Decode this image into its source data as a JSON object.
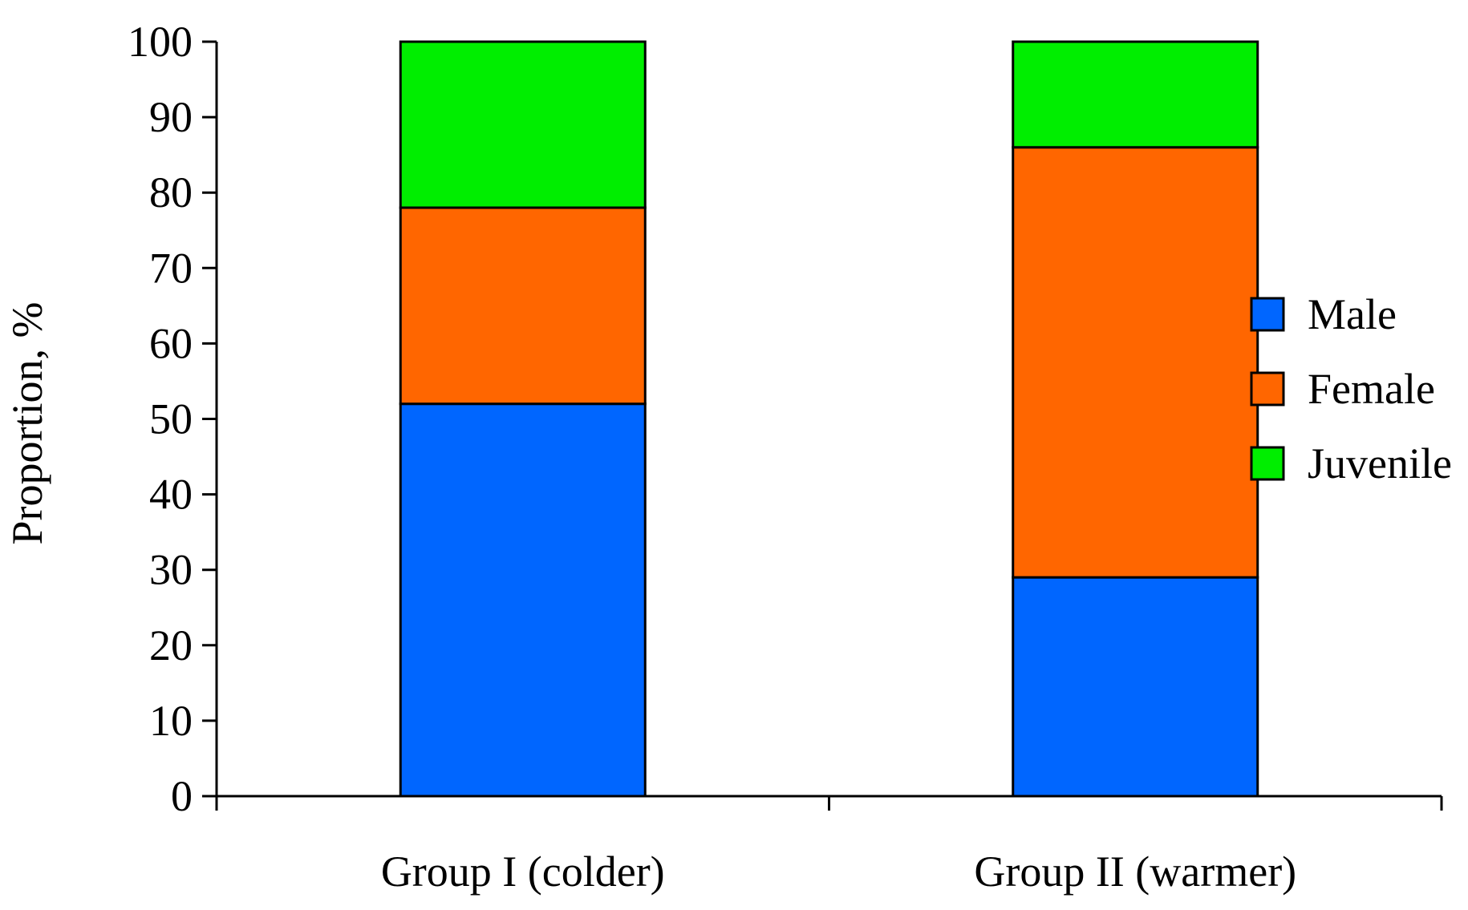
{
  "chart_data": {
    "type": "bar",
    "stacked": true,
    "title": "",
    "xlabel": "",
    "ylabel": "Proportion, %",
    "ylim": [
      0,
      100
    ],
    "yticks": [
      0,
      10,
      20,
      30,
      40,
      50,
      60,
      70,
      80,
      90,
      100
    ],
    "categories": [
      "Group I (colder)",
      "Group II (warmer)"
    ],
    "series": [
      {
        "name": "Male",
        "color": "#0066FF",
        "values": [
          52,
          29
        ]
      },
      {
        "name": "Female",
        "color": "#FF6600",
        "values": [
          26,
          57
        ]
      },
      {
        "name": "Juvenile",
        "color": "#00EE00",
        "values": [
          22,
          14
        ]
      }
    ],
    "legend": "right",
    "grid": false
  }
}
